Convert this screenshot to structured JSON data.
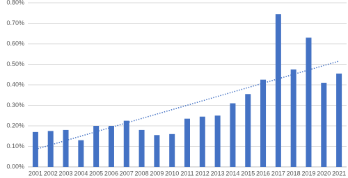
{
  "chart_data": {
    "type": "bar",
    "categories": [
      "2001",
      "2002",
      "2003",
      "2004",
      "2005",
      "2006",
      "2007",
      "2008",
      "2009",
      "2010",
      "2011",
      "2012",
      "2013",
      "2014",
      "2015",
      "2016",
      "2017",
      "2018",
      "2019",
      "2020",
      "2021"
    ],
    "values": [
      0.17,
      0.175,
      0.18,
      0.13,
      0.2,
      0.2,
      0.225,
      0.18,
      0.155,
      0.16,
      0.235,
      0.245,
      0.25,
      0.31,
      0.355,
      0.425,
      0.745,
      0.475,
      0.63,
      0.41,
      0.455
    ],
    "color": "#4472c4",
    "ylim": [
      0,
      0.8
    ],
    "yticks": [
      {
        "value": 0,
        "label": "0.00%"
      },
      {
        "value": 0.1,
        "label": "0.10%"
      },
      {
        "value": 0.2,
        "label": "0.20%"
      },
      {
        "value": 0.3,
        "label": "0.30%"
      },
      {
        "value": 0.4,
        "label": "0.40%"
      },
      {
        "value": 0.5,
        "label": "0.50%"
      },
      {
        "value": 0.6,
        "label": "0.60%"
      },
      {
        "value": 0.7,
        "label": "0.70%"
      },
      {
        "value": 0.8,
        "label": "0.80%"
      }
    ],
    "grid": true,
    "trendline": "linear"
  }
}
